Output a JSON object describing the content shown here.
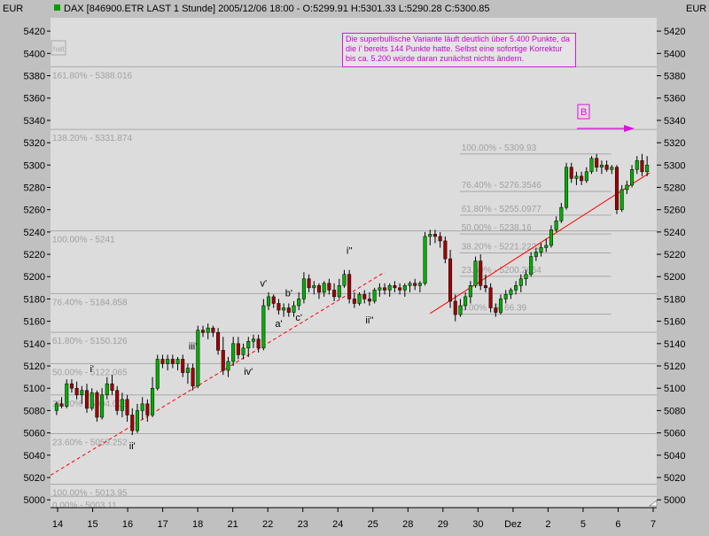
{
  "header": {
    "left_currency": "EUR",
    "right_currency": "EUR",
    "title": "DAX [846900.ETR LAST 1 Stunde] 2005/12/06 18:00 - O:5299.91 H:5301.33 L:5290.28 C:5300.85",
    "indicator_color": "#00a000"
  },
  "annotation_text": "Die superbullische Variante läuft deutlich über 5.400 Punkte, da die i' bereits 144 Punkte hatte. Selbst eine sofortige Korrektur bis ca. 5.200 würde daran zunächst nichts ändern.",
  "marker_label": "B",
  "faded_label": "halt",
  "colors": {
    "background": "#c0c0c0",
    "plot_background": "#dcdcdc",
    "bull_candle": "#00b000",
    "bear_candle": "#a00000",
    "trendline": "#ff0000",
    "annotation": "#e010e0",
    "fib_line": "#a8a8a8",
    "fib_text": "#a0a0a0"
  },
  "chart_data": {
    "type": "candlestick",
    "ylim": [
      4993,
      5432
    ],
    "y_ticks": [
      5000,
      5020,
      5040,
      5060,
      5080,
      5100,
      5120,
      5140,
      5160,
      5180,
      5200,
      5220,
      5240,
      5260,
      5280,
      5300,
      5320,
      5340,
      5360,
      5380,
      5400,
      5420
    ],
    "x_ticks": [
      "14",
      "15",
      "16",
      "17",
      "18",
      "21",
      "22",
      "23",
      "24",
      "25",
      "28",
      "29",
      "30",
      "Dez",
      "2",
      "5",
      "6",
      "7"
    ],
    "wave_labels": [
      "i'",
      "ii'",
      "iii'",
      "iv'",
      "v'",
      "a'",
      "b'",
      "c'",
      "i''",
      "ii''"
    ],
    "fib_levels": [
      {
        "label": "161.80% - 5388.016",
        "value": 5388.016
      },
      {
        "label": "138.20% - 5331.874",
        "value": 5331.874
      },
      {
        "label": "100.00% - 5241",
        "value": 5241
      },
      {
        "label": "76.40% - 5184.858",
        "value": 5184.858
      },
      {
        "label": "61.80% - 5150.126",
        "value": 5150.126
      },
      {
        "label": "50.00% - 5122.065",
        "value": 5122.065
      },
      {
        "label": "38.20% - 5094.003",
        "value": 5094.003
      },
      {
        "label": "23.60% - 5059.252",
        "value": 5059.252
      },
      {
        "label": "100.00% - 5013.95",
        "value": 5013.95
      },
      {
        "label": "0.00% - 5003.11",
        "value": 5003.11
      }
    ],
    "fib_levels_2": [
      {
        "label": "100.00% - 5309.93",
        "value": 5309.93
      },
      {
        "label": "76.40% - 5276.3546",
        "value": 5276.3546
      },
      {
        "label": "61.80% - 5255.0977",
        "value": 5255.0977
      },
      {
        "label": "50.00% - 5238.16",
        "value": 5238.16
      },
      {
        "label": "38.20% - 5221.2223",
        "value": 5221.2223
      },
      {
        "label": "23.60% - 5200.2654",
        "value": 5200.2654
      },
      {
        "label": "0.00% - 5166.39",
        "value": 5166.39
      }
    ],
    "candles": [
      [
        5080,
        5088,
        5076,
        5086
      ],
      [
        5086,
        5092,
        5082,
        5084
      ],
      [
        5084,
        5108,
        5082,
        5104
      ],
      [
        5104,
        5108,
        5096,
        5100
      ],
      [
        5100,
        5106,
        5090,
        5094
      ],
      [
        5094,
        5102,
        5086,
        5098
      ],
      [
        5098,
        5104,
        5078,
        5082
      ],
      [
        5082,
        5100,
        5080,
        5096
      ],
      [
        5096,
        5098,
        5070,
        5074
      ],
      [
        5074,
        5100,
        5072,
        5094
      ],
      [
        5094,
        5110,
        5090,
        5104
      ],
      [
        5104,
        5112,
        5094,
        5098
      ],
      [
        5098,
        5102,
        5076,
        5080
      ],
      [
        5080,
        5096,
        5074,
        5090
      ],
      [
        5090,
        5094,
        5070,
        5076
      ],
      [
        5076,
        5082,
        5058,
        5062
      ],
      [
        5062,
        5086,
        5060,
        5080
      ],
      [
        5080,
        5092,
        5072,
        5086
      ],
      [
        5086,
        5090,
        5070,
        5076
      ],
      [
        5076,
        5110,
        5074,
        5100
      ],
      [
        5100,
        5130,
        5098,
        5126
      ],
      [
        5126,
        5130,
        5118,
        5122
      ],
      [
        5122,
        5130,
        5116,
        5126
      ],
      [
        5126,
        5130,
        5118,
        5122
      ],
      [
        5122,
        5128,
        5116,
        5126
      ],
      [
        5126,
        5130,
        5110,
        5114
      ],
      [
        5114,
        5122,
        5104,
        5118
      ],
      [
        5118,
        5122,
        5098,
        5102
      ],
      [
        5102,
        5156,
        5100,
        5152
      ],
      [
        5152,
        5156,
        5146,
        5150
      ],
      [
        5150,
        5158,
        5144,
        5154
      ],
      [
        5154,
        5156,
        5146,
        5150
      ],
      [
        5150,
        5154,
        5130,
        5134
      ],
      [
        5134,
        5146,
        5112,
        5116
      ],
      [
        5116,
        5128,
        5110,
        5124
      ],
      [
        5124,
        5146,
        5120,
        5140
      ],
      [
        5140,
        5146,
        5126,
        5130
      ],
      [
        5130,
        5140,
        5126,
        5136
      ],
      [
        5136,
        5146,
        5128,
        5142
      ],
      [
        5142,
        5148,
        5136,
        5144
      ],
      [
        5144,
        5148,
        5132,
        5136
      ],
      [
        5136,
        5180,
        5134,
        5174
      ],
      [
        5174,
        5186,
        5170,
        5182
      ],
      [
        5182,
        5184,
        5172,
        5176
      ],
      [
        5176,
        5180,
        5166,
        5170
      ],
      [
        5170,
        5176,
        5164,
        5172
      ],
      [
        5172,
        5176,
        5164,
        5168
      ],
      [
        5168,
        5178,
        5164,
        5174
      ],
      [
        5174,
        5186,
        5170,
        5180
      ],
      [
        5180,
        5204,
        5176,
        5198
      ],
      [
        5198,
        5202,
        5186,
        5190
      ],
      [
        5190,
        5196,
        5184,
        5192
      ],
      [
        5192,
        5194,
        5180,
        5186
      ],
      [
        5186,
        5196,
        5182,
        5194
      ],
      [
        5194,
        5198,
        5184,
        5188
      ],
      [
        5188,
        5194,
        5178,
        5182
      ],
      [
        5182,
        5198,
        5180,
        5192
      ],
      [
        5192,
        5206,
        5190,
        5202
      ],
      [
        5202,
        5206,
        5176,
        5180
      ],
      [
        5180,
        5186,
        5172,
        5176
      ],
      [
        5176,
        5186,
        5174,
        5184
      ],
      [
        5184,
        5188,
        5176,
        5180
      ],
      [
        5180,
        5186,
        5174,
        5178
      ],
      [
        5178,
        5190,
        5176,
        5188
      ],
      [
        5188,
        5194,
        5182,
        5190
      ],
      [
        5190,
        5194,
        5184,
        5188
      ],
      [
        5188,
        5194,
        5182,
        5192
      ],
      [
        5192,
        5196,
        5186,
        5190
      ],
      [
        5190,
        5194,
        5184,
        5188
      ],
      [
        5188,
        5194,
        5182,
        5192
      ],
      [
        5192,
        5196,
        5186,
        5194
      ],
      [
        5194,
        5198,
        5188,
        5192
      ],
      [
        5192,
        5196,
        5186,
        5194
      ],
      [
        5194,
        5240,
        5192,
        5236
      ],
      [
        5236,
        5242,
        5228,
        5238
      ],
      [
        5238,
        5242,
        5230,
        5236
      ],
      [
        5236,
        5240,
        5226,
        5232
      ],
      [
        5232,
        5236,
        5212,
        5216
      ],
      [
        5216,
        5224,
        5172,
        5178
      ],
      [
        5178,
        5184,
        5160,
        5166
      ],
      [
        5166,
        5180,
        5164,
        5174
      ],
      [
        5174,
        5186,
        5170,
        5182
      ],
      [
        5182,
        5196,
        5176,
        5192
      ],
      [
        5192,
        5218,
        5190,
        5214
      ],
      [
        5214,
        5220,
        5188,
        5192
      ],
      [
        5192,
        5202,
        5186,
        5190
      ],
      [
        5190,
        5194,
        5168,
        5172
      ],
      [
        5172,
        5176,
        5164,
        5168
      ],
      [
        5168,
        5184,
        5166,
        5180
      ],
      [
        5180,
        5188,
        5176,
        5184
      ],
      [
        5184,
        5190,
        5180,
        5188
      ],
      [
        5188,
        5196,
        5184,
        5192
      ],
      [
        5192,
        5202,
        5186,
        5198
      ],
      [
        5198,
        5206,
        5192,
        5202
      ],
      [
        5202,
        5222,
        5200,
        5218
      ],
      [
        5218,
        5226,
        5214,
        5222
      ],
      [
        5222,
        5230,
        5218,
        5226
      ],
      [
        5226,
        5234,
        5222,
        5228
      ],
      [
        5228,
        5246,
        5226,
        5242
      ],
      [
        5242,
        5254,
        5240,
        5250
      ],
      [
        5250,
        5266,
        5248,
        5262
      ],
      [
        5262,
        5302,
        5260,
        5298
      ],
      [
        5298,
        5302,
        5284,
        5288
      ],
      [
        5288,
        5294,
        5282,
        5290
      ],
      [
        5290,
        5294,
        5282,
        5286
      ],
      [
        5286,
        5298,
        5284,
        5294
      ],
      [
        5294,
        5308,
        5292,
        5306
      ],
      [
        5306,
        5310,
        5294,
        5298
      ],
      [
        5298,
        5304,
        5292,
        5300
      ],
      [
        5300,
        5304,
        5294,
        5296
      ],
      [
        5296,
        5300,
        5292,
        5298
      ],
      [
        5298,
        5300,
        5256,
        5260
      ],
      [
        5260,
        5282,
        5258,
        5278
      ],
      [
        5278,
        5286,
        5274,
        5282
      ],
      [
        5282,
        5300,
        5280,
        5296
      ],
      [
        5296,
        5308,
        5292,
        5304
      ],
      [
        5304,
        5310,
        5290,
        5294
      ],
      [
        5294,
        5308,
        5290,
        5300
      ]
    ]
  }
}
